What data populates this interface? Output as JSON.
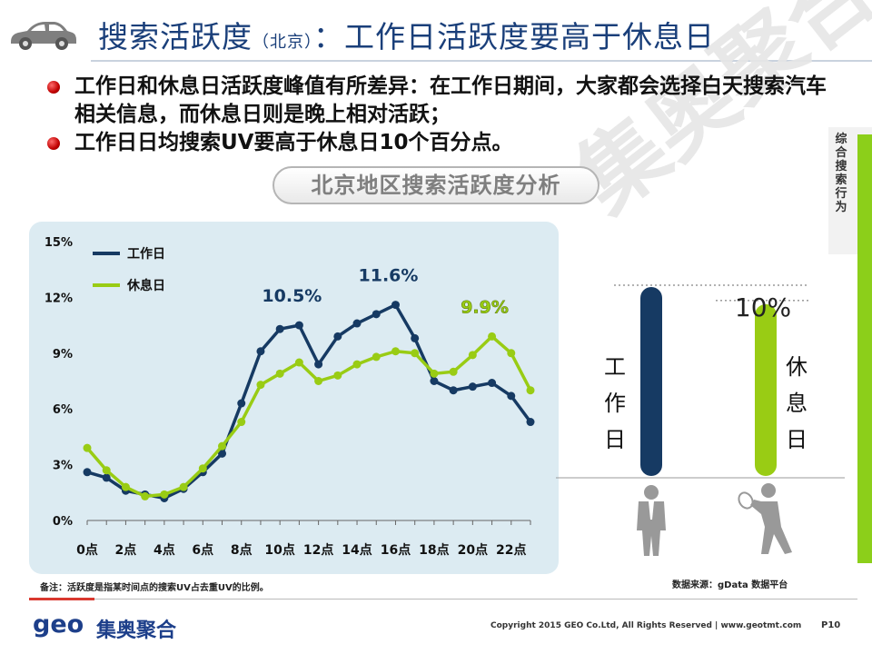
{
  "header": {
    "title_main": "搜索活跃度",
    "title_paren": "（北京）",
    "title_tail": "：工作日活跃度要高于休息日",
    "icon": "car-icon"
  },
  "bullets": [
    "工作日和休息日活跃度峰值有所差异：在工作日期间，大家都会选择白天搜索汽车相关信息，而休息日则是晚上相对活跃；",
    "工作日日均搜索UV要高于休息日10个百分点。"
  ],
  "subtitle": "北京地区搜索活跃度分析",
  "side_tag": "综合搜索行为",
  "watermark": "集奥聚合",
  "chart_data": {
    "type": "line",
    "x": [
      "0点",
      "1点",
      "2点",
      "3点",
      "4点",
      "5点",
      "6点",
      "7点",
      "8点",
      "9点",
      "10点",
      "11点",
      "12点",
      "13点",
      "14点",
      "15点",
      "16点",
      "17点",
      "18点",
      "19点",
      "20点",
      "21点",
      "22点",
      "23点"
    ],
    "x_tick_labels": [
      "0点",
      "2点",
      "4点",
      "6点",
      "8点",
      "10点",
      "12点",
      "14点",
      "16点",
      "18点",
      "20点",
      "22点"
    ],
    "y_tick_labels": [
      "0%",
      "3%",
      "6%",
      "9%",
      "12%",
      "15%"
    ],
    "ylim": [
      0,
      15
    ],
    "grid": false,
    "legend_position": "top-left",
    "series": [
      {
        "name": "工作日",
        "color": "#163a63",
        "values": [
          2.6,
          2.3,
          1.6,
          1.4,
          1.2,
          1.7,
          2.6,
          3.6,
          6.3,
          9.1,
          10.3,
          10.5,
          8.4,
          9.9,
          10.6,
          11.1,
          11.6,
          9.8,
          7.5,
          7.0,
          7.2,
          7.4,
          6.7,
          5.3
        ]
      },
      {
        "name": "休息日",
        "color": "#99cc14",
        "values": [
          3.9,
          2.7,
          1.8,
          1.3,
          1.4,
          1.8,
          2.8,
          4.0,
          5.3,
          7.3,
          7.9,
          8.5,
          7.5,
          7.8,
          8.4,
          8.8,
          9.1,
          9.0,
          7.9,
          8.0,
          8.9,
          9.9,
          9.0,
          7.0
        ]
      }
    ],
    "annotations": [
      {
        "text": "10.5%",
        "series": 0,
        "x_index": 11
      },
      {
        "text": "11.6%",
        "series": 0,
        "x_index": 16
      },
      {
        "text": "9.9%",
        "series": 1,
        "x_index": 21
      }
    ]
  },
  "bar_compare": {
    "workday": {
      "label_chars": [
        "工",
        "作",
        "日"
      ],
      "color": "#163a63",
      "value": 11
    },
    "rest": {
      "label_chars": [
        "休",
        "息",
        "日"
      ],
      "color": "#99cc14",
      "value": 10,
      "value_label": "10%"
    },
    "workday_icon": "businessman-icon",
    "rest_icon": "tennis-player-icon"
  },
  "footer": {
    "note": "备注：活跃度是指某时间点的搜索UV占去重UV的比例。",
    "source": "数据来源：gData 数据平台",
    "logo_text": "geo",
    "logo_cn": "集奥聚合",
    "copyright": "Copyright 2015 GEO Co.Ltd, All Rights Reserved  |  www.geotmt.com",
    "page": "P10"
  }
}
